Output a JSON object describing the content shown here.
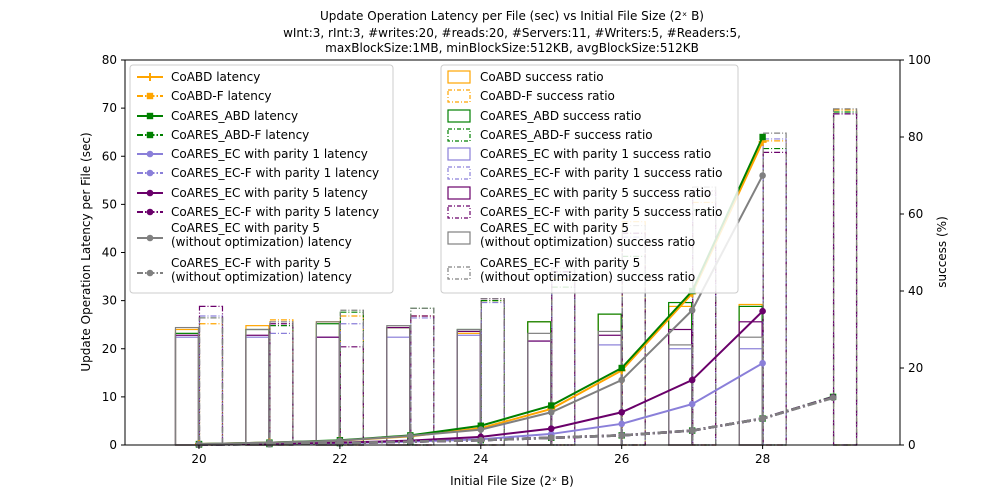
{
  "chart_data": {
    "type": "bar+line",
    "title_lines": [
      "Update Operation Latency per File (sec) vs Initial File Size (2ˣ B)",
      "wInt:3, rInt:3, #writes:20, #reads:20, #Servers:11, #Writers:5, #Readers:5,",
      "maxBlockSize:1MB, minBlockSize:512KB, avgBlockSize:512KB"
    ],
    "xlabel": "Initial File Size (2ˣ B)",
    "ylabel_left": "Update Operation Latency per File (sec)",
    "ylabel_right": "success (%)",
    "xlim": [
      18.95,
      29.95
    ],
    "ylim_left": [
      0,
      80
    ],
    "ylim_right": [
      0,
      100
    ],
    "x_ticks": [
      20,
      22,
      24,
      26,
      28
    ],
    "y_ticks_left": [
      0,
      10,
      20,
      30,
      40,
      50,
      60,
      70,
      80
    ],
    "y_ticks_right": [
      0,
      20,
      40,
      60,
      80,
      100
    ],
    "x": [
      20,
      21,
      22,
      23,
      24,
      25,
      26,
      27,
      28,
      29
    ],
    "line_series": [
      {
        "name": "CoABD latency",
        "color": "#ffa500",
        "dashed": false,
        "marker": "plus",
        "values": [
          0.2,
          0.5,
          0.9,
          1.8,
          3.5,
          7.5,
          15.5,
          31.5,
          63.0,
          null
        ]
      },
      {
        "name": "CoABD-F latency",
        "color": "#ffa500",
        "dashed": true,
        "marker": "square",
        "values": [
          null,
          null,
          null,
          null,
          null,
          null,
          null,
          null,
          null,
          null
        ]
      },
      {
        "name": "CoARES_ABD latency",
        "color": "#008000",
        "dashed": false,
        "marker": "square",
        "values": [
          0.2,
          0.5,
          1.0,
          2.0,
          4.0,
          8.2,
          16.0,
          32.0,
          64.0,
          null
        ]
      },
      {
        "name": "CoARES_ABD-F latency",
        "color": "#008000",
        "dashed": true,
        "marker": "square",
        "values": [
          0.1,
          0.2,
          0.4,
          0.7,
          1.0,
          1.5,
          2.0,
          3.0,
          5.5,
          10.0
        ]
      },
      {
        "name": "CoARES_EC with parity 1 latency",
        "color": "#8a7fd9",
        "dashed": false,
        "marker": "circle",
        "values": [
          0.1,
          0.3,
          0.4,
          0.7,
          1.2,
          2.3,
          4.4,
          8.5,
          17.0,
          null
        ]
      },
      {
        "name": "CoARES_EC-F with parity 1 latency",
        "color": "#8a7fd9",
        "dashed": true,
        "marker": "circle",
        "values": [
          0.1,
          0.2,
          0.4,
          0.7,
          1.0,
          1.5,
          2.0,
          3.0,
          5.5,
          9.9
        ]
      },
      {
        "name": "CoARES_EC with parity 5 latency",
        "color": "#6a006a",
        "dashed": false,
        "marker": "circle",
        "values": [
          0.1,
          0.3,
          0.5,
          0.9,
          1.7,
          3.4,
          6.8,
          13.5,
          27.8,
          null
        ]
      },
      {
        "name": "CoARES_EC-F with parity 5 latency",
        "color": "#6a006a",
        "dashed": true,
        "marker": "circle",
        "values": [
          0.1,
          0.2,
          0.4,
          0.7,
          1.0,
          1.5,
          2.0,
          3.0,
          5.5,
          9.9
        ]
      },
      {
        "name": "CoARES_EC with parity 5\n(without optimization) latency",
        "color": "#808080",
        "dashed": false,
        "marker": "circle",
        "values": [
          0.2,
          0.5,
          0.9,
          1.9,
          3.2,
          6.8,
          13.5,
          28.0,
          56.0,
          null
        ]
      },
      {
        "name": "CoARES_EC-F with parity 5\n(without optimization) latency",
        "color": "#808080",
        "dashed": true,
        "marker": "circle",
        "values": [
          0.1,
          0.2,
          0.4,
          0.7,
          1.0,
          1.5,
          2.0,
          3.0,
          5.5,
          9.8
        ]
      }
    ],
    "bar_series": [
      {
        "name": "CoABD success ratio",
        "color": "#ffa500",
        "dashed": false,
        "values": [
          30,
          31,
          32,
          30.5,
          29,
          32,
          34,
          36,
          36.5,
          null
        ]
      },
      {
        "name": "CoABD-F success ratio",
        "color": "#ffa500",
        "dashed": true,
        "values": [
          31.5,
          32.5,
          33.5,
          33.5,
          37.5,
          43,
          58,
          63,
          79,
          87
        ]
      },
      {
        "name": "CoARES_ABD success ratio",
        "color": "#008000",
        "dashed": false,
        "values": [
          29,
          30,
          31.5,
          30.5,
          30,
          32,
          34,
          37,
          36,
          null
        ]
      },
      {
        "name": "CoARES_ABD-F success ratio",
        "color": "#008000",
        "dashed": true,
        "values": [
          33,
          31,
          34.5,
          35.5,
          37.5,
          41,
          49,
          61,
          77,
          86.5
        ]
      },
      {
        "name": "CoARES_EC with parity 1 success ratio",
        "color": "#8a7fd9",
        "dashed": false,
        "values": [
          28,
          28,
          28,
          28,
          28.5,
          27,
          26,
          25,
          25,
          null
        ]
      },
      {
        "name": "CoARES_EC-F with parity 1 success ratio",
        "color": "#8a7fd9",
        "dashed": true,
        "values": [
          33.5,
          29,
          31.5,
          33,
          37,
          44,
          54,
          65,
          79.5,
          86
        ]
      },
      {
        "name": "CoARES_EC with parity 5 success ratio",
        "color": "#6a006a",
        "dashed": false,
        "values": [
          28.5,
          28.5,
          28,
          30.5,
          29.5,
          27,
          28.5,
          30,
          32,
          null
        ]
      },
      {
        "name": "CoARES_EC-F with parity 5 success ratio",
        "color": "#6a006a",
        "dashed": true,
        "values": [
          36,
          31.5,
          25.5,
          33.5,
          38,
          45,
          55,
          66,
          76,
          86
        ]
      },
      {
        "name": "CoARES_EC with parity 5\n(without optimization) success ratio",
        "color": "#808080",
        "dashed": false,
        "values": [
          30.5,
          30,
          32,
          31,
          30,
          29,
          29.5,
          26,
          28,
          null
        ]
      },
      {
        "name": "CoARES_EC-F with parity 5\n(without optimization) success ratio",
        "color": "#808080",
        "dashed": true,
        "values": [
          33,
          32,
          35,
          35.5,
          38,
          46,
          57,
          67,
          81,
          87.3
        ]
      }
    ],
    "grid": false,
    "legend_positions": [
      "upper-left",
      "upper-center"
    ]
  }
}
